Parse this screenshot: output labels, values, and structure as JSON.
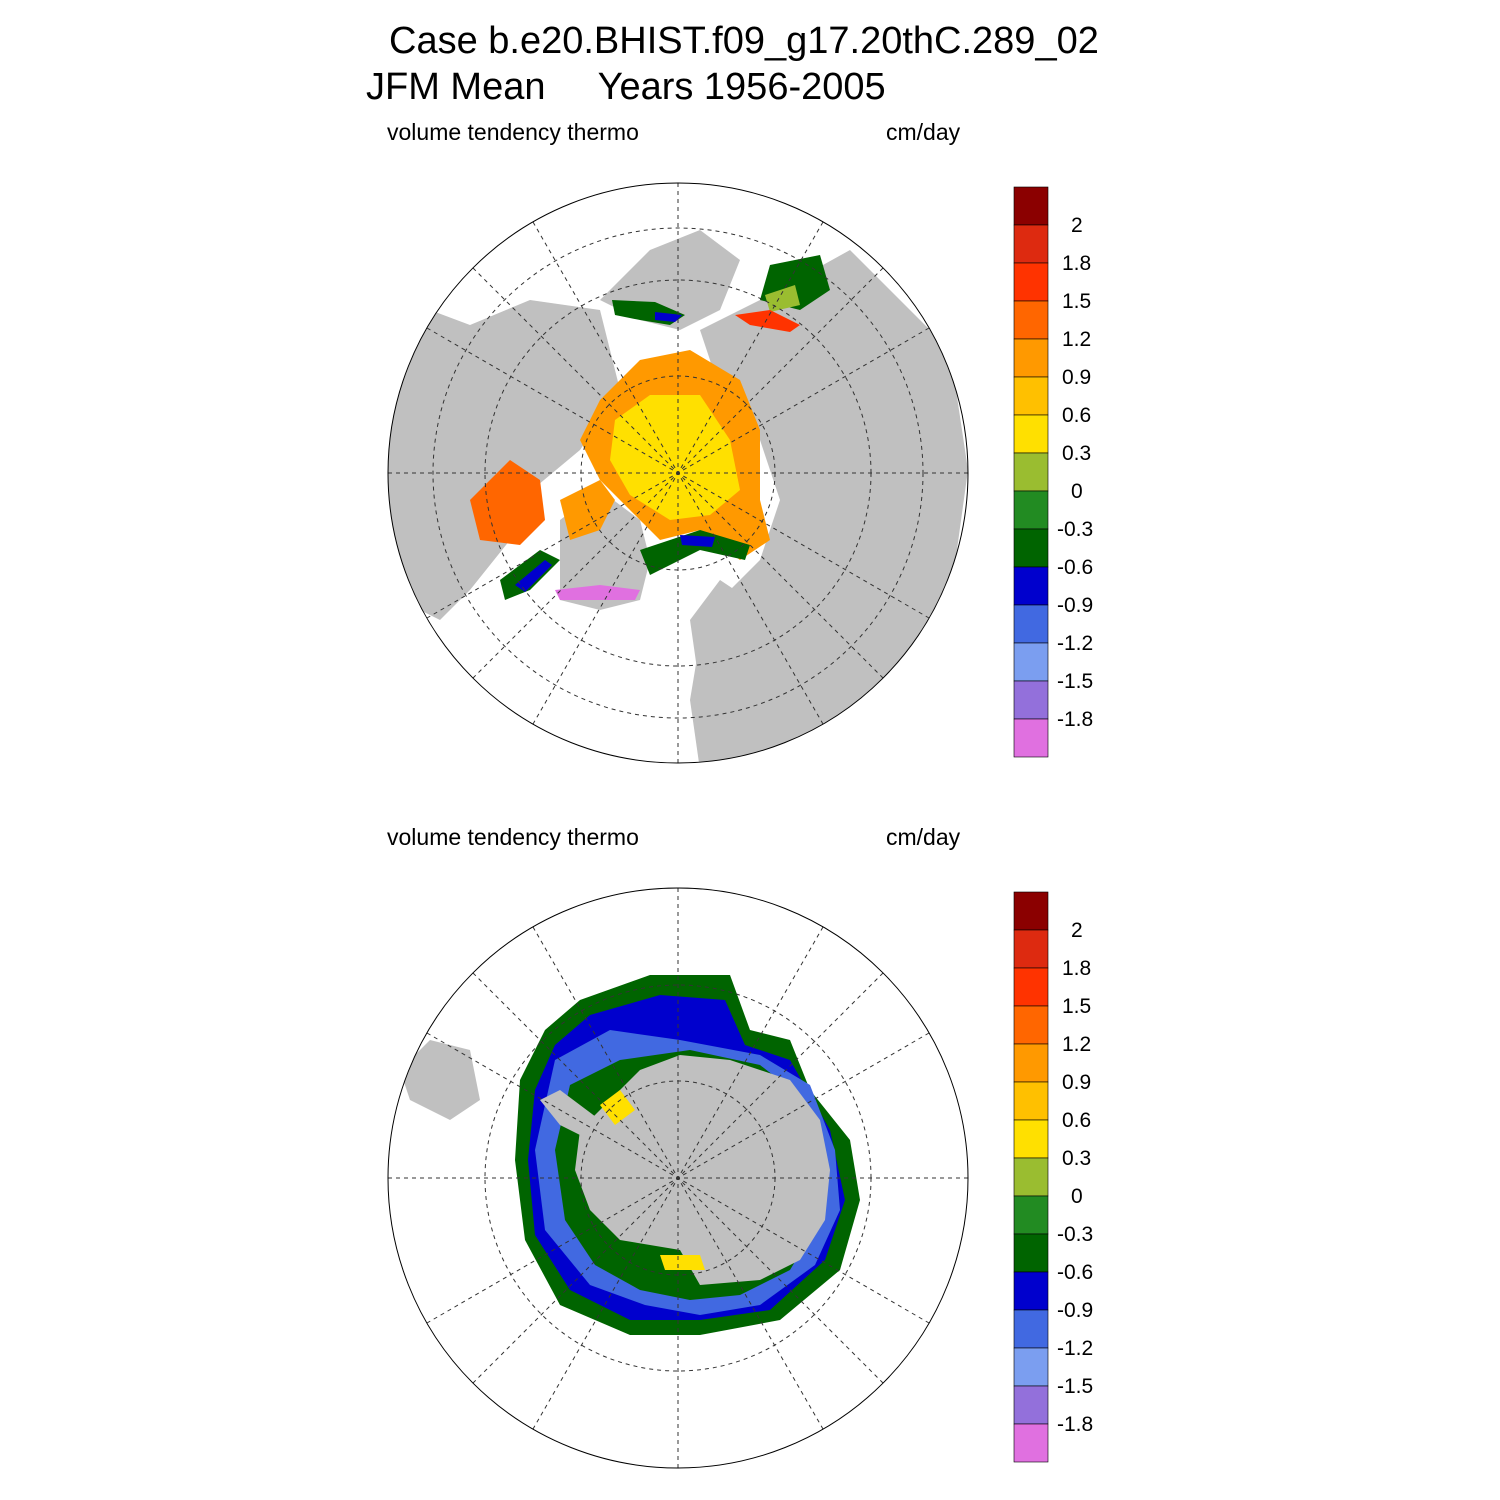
{
  "header": {
    "case_line": "Case b.e20.BHIST.f09_g17.20thC.289_02",
    "mean_line": "JFM Mean     Years 1956-2005"
  },
  "panels": [
    {
      "variable_label": "volume tendency thermo",
      "units_label": "cm/day",
      "hemisphere": "north"
    },
    {
      "variable_label": "volume tendency thermo",
      "units_label": "cm/day",
      "hemisphere": "south"
    }
  ],
  "colorbar": {
    "tick_labels": [
      "2",
      "1.8",
      "1.5",
      "1.2",
      "0.9",
      "0.6",
      "0.3",
      "0",
      "-0.3",
      "-0.6",
      "-0.9",
      "-1.2",
      "-1.5",
      "-1.8"
    ],
    "colors": [
      "#8b0000",
      "#dd2a10",
      "#ff3300",
      "#ff6600",
      "#ff9900",
      "#ffc000",
      "#ffe000",
      "#9abd30",
      "#228b22",
      "#006400",
      "#0000cd",
      "#4169e1",
      "#7b9ef0",
      "#9370db",
      "#e070e0"
    ]
  },
  "map_colors": {
    "land": "#c0c0c0",
    "ocean": "#ffffff",
    "grid": "#333333"
  }
}
